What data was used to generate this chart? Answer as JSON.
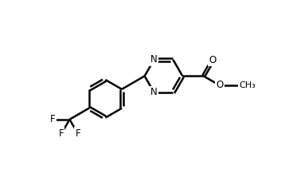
{
  "background_color": "#ffffff",
  "line_color": "#000000",
  "line_width": 1.8,
  "font_size": 8.5,
  "figsize": [
    3.58,
    2.37
  ],
  "dpi": 100,
  "xlim": [
    0,
    10
  ],
  "ylim": [
    0,
    7
  ]
}
